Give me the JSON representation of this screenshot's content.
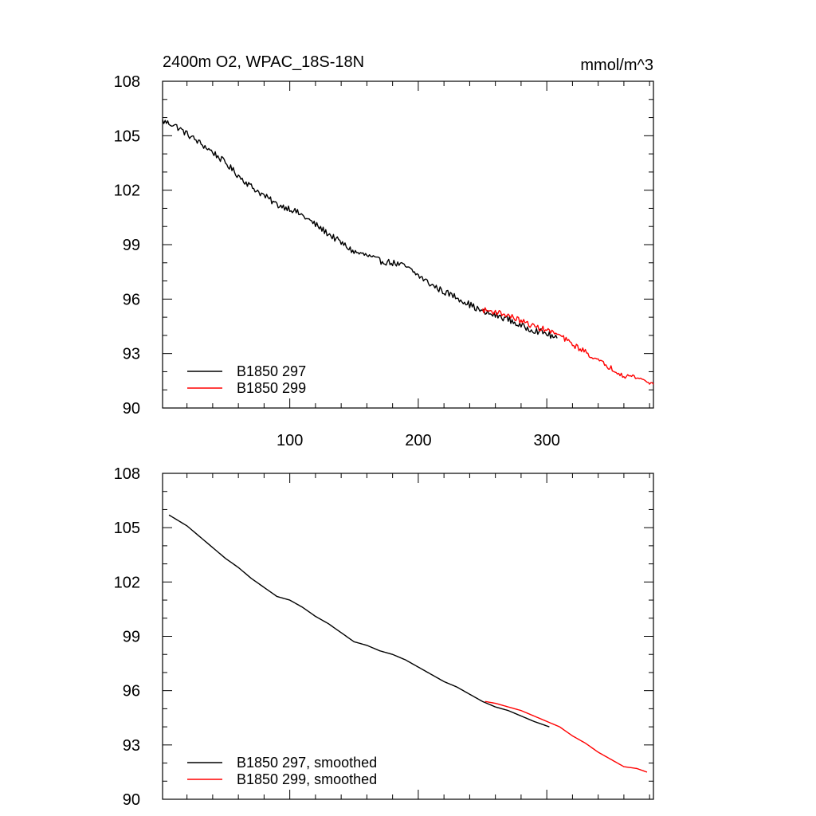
{
  "chart_data": [
    {
      "type": "line",
      "title": "2400m O2, WPAC_18S-18N",
      "units": "mmol/m^3",
      "xlim": [
        1,
        383
      ],
      "ylim": [
        90,
        108
      ],
      "xticks": [
        100,
        200,
        300
      ],
      "xtick_labels": [
        "100",
        "200",
        "300"
      ],
      "yticks": [
        90,
        93,
        96,
        99,
        102,
        105,
        108
      ],
      "ytick_labels": [
        "90",
        "93",
        "96",
        "99",
        "102",
        "105",
        "108"
      ],
      "legend_position": "bottom-left",
      "series": [
        {
          "name": "B1850 297",
          "color": "#000000",
          "noise": 0.18,
          "x": [
            1,
            10,
            20,
            30,
            40,
            50,
            60,
            70,
            80,
            90,
            100,
            110,
            120,
            130,
            140,
            150,
            160,
            170,
            180,
            190,
            200,
            210,
            220,
            230,
            240,
            250,
            260,
            270,
            280,
            290,
            300,
            308
          ],
          "values": [
            105.8,
            105.6,
            105.1,
            104.6,
            104.1,
            103.5,
            102.8,
            102.2,
            101.7,
            101.2,
            101.0,
            100.6,
            100.1,
            99.6,
            99.1,
            98.6,
            98.4,
            98.1,
            98.0,
            97.8,
            97.3,
            96.8,
            96.4,
            96.1,
            95.7,
            95.3,
            95.1,
            94.9,
            94.5,
            94.3,
            94.1,
            93.8
          ]
        },
        {
          "name": "B1850 299",
          "color": "#ff0000",
          "noise": 0.15,
          "x": [
            250,
            260,
            270,
            280,
            290,
            300,
            310,
            320,
            330,
            340,
            350,
            360,
            370,
            383
          ],
          "values": [
            95.4,
            95.3,
            95.1,
            94.8,
            94.5,
            94.3,
            94.0,
            93.5,
            93.1,
            92.6,
            92.2,
            91.8,
            91.7,
            91.3
          ]
        }
      ]
    },
    {
      "type": "line",
      "xlim": [
        1,
        383
      ],
      "ylim": [
        90,
        108
      ],
      "xticks": [
        100,
        200,
        300
      ],
      "yticks": [
        90,
        93,
        96,
        99,
        102,
        105,
        108
      ],
      "ytick_labels": [
        "90",
        "93",
        "96",
        "99",
        "102",
        "105",
        "108"
      ],
      "legend_position": "bottom-left",
      "series": [
        {
          "name": "B1850 297, smoothed",
          "color": "#000000",
          "noise": 0,
          "x": [
            6,
            20,
            30,
            40,
            50,
            60,
            70,
            80,
            90,
            100,
            110,
            120,
            130,
            140,
            150,
            160,
            170,
            180,
            190,
            200,
            210,
            220,
            230,
            240,
            250,
            260,
            270,
            280,
            290,
            302
          ],
          "values": [
            105.7,
            105.1,
            104.5,
            103.9,
            103.3,
            102.8,
            102.2,
            101.7,
            101.2,
            101.0,
            100.6,
            100.1,
            99.7,
            99.2,
            98.7,
            98.5,
            98.2,
            98.0,
            97.7,
            97.3,
            96.9,
            96.5,
            96.2,
            95.8,
            95.4,
            95.1,
            94.9,
            94.6,
            94.3,
            94.0
          ]
        },
        {
          "name": "B1850 299, smoothed",
          "color": "#ff0000",
          "noise": 0,
          "x": [
            252,
            260,
            270,
            280,
            290,
            300,
            310,
            320,
            330,
            340,
            350,
            360,
            370,
            378
          ],
          "values": [
            95.4,
            95.3,
            95.1,
            94.9,
            94.6,
            94.3,
            94.0,
            93.5,
            93.1,
            92.6,
            92.2,
            91.8,
            91.7,
            91.5
          ]
        }
      ]
    }
  ]
}
